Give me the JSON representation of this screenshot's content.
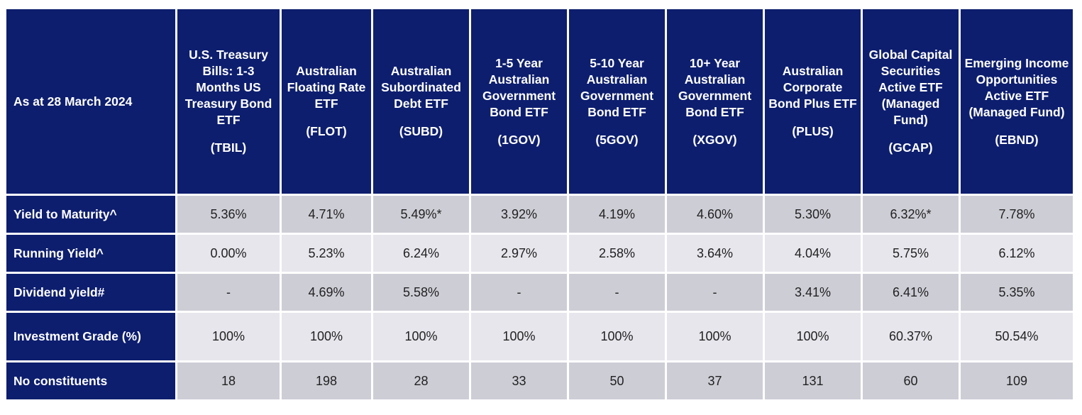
{
  "header": {
    "corner": "As at 28 March 2024",
    "columns": [
      {
        "name": "U.S. Treasury Bills: 1-3 Months US Treasury Bond ETF",
        "ticker": "(TBIL)"
      },
      {
        "name": "Australian Floating Rate ETF",
        "ticker": "(FLOT)"
      },
      {
        "name": "Australian Subordinated Debt ETF",
        "ticker": "(SUBD)"
      },
      {
        "name": "1-5 Year Australian Government Bond ETF",
        "ticker": "(1GOV)"
      },
      {
        "name": "5-10 Year Australian Government Bond ETF",
        "ticker": "(5GOV)"
      },
      {
        "name": "10+ Year Australian Government Bond ETF",
        "ticker": "(XGOV)"
      },
      {
        "name": "Australian Corporate Bond Plus ETF",
        "ticker": "(PLUS)"
      },
      {
        "name": "Global Capital Securities Active ETF (Managed Fund)",
        "ticker": "(GCAP)"
      },
      {
        "name": "Emerging Income Opportunities Active ETF (Managed Fund)",
        "ticker": "(EBND)"
      }
    ]
  },
  "rows": [
    {
      "label": "Yield to Maturity^",
      "values": [
        "5.36%",
        "4.71%",
        "5.49%*",
        "3.92%",
        "4.19%",
        "4.60%",
        "5.30%",
        "6.32%*",
        "7.78%"
      ]
    },
    {
      "label": "Running Yield^",
      "values": [
        "0.00%",
        "5.23%",
        "6.24%",
        "2.97%",
        "2.58%",
        "3.64%",
        "4.04%",
        "5.75%",
        "6.12%"
      ]
    },
    {
      "label": "Dividend yield#",
      "values": [
        "-",
        "4.69%",
        "5.58%",
        "-",
        "-",
        "-",
        "3.41%",
        "6.41%",
        "5.35%"
      ]
    },
    {
      "label": "Investment Grade (%)",
      "values": [
        "100%",
        "100%",
        "100%",
        "100%",
        "100%",
        "100%",
        "100%",
        "60.37%",
        "50.54%"
      ]
    },
    {
      "label": "No constituents",
      "values": [
        "18",
        "198",
        "28",
        "33",
        "50",
        "37",
        "131",
        "60",
        "109"
      ]
    }
  ],
  "colors": {
    "header_bg": "#0d1e6e",
    "row_dark": "#cdcdd6",
    "row_light": "#e6e6ec"
  }
}
